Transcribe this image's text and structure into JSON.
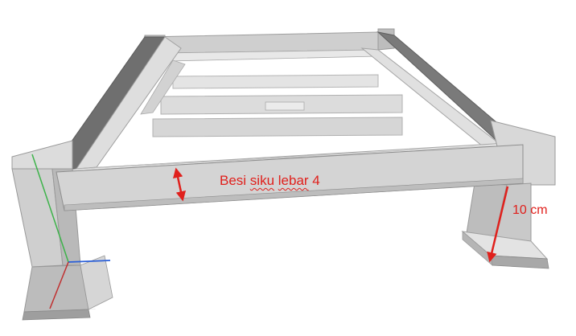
{
  "annotations": {
    "angle_iron": {
      "prefix": "Besi ",
      "squiggle_word": "siku",
      "middle": " ",
      "squiggle_word2": "lebar",
      "suffix": " 4"
    },
    "leg_height": "10 cm"
  },
  "colors": {
    "annotation": "#e0201c",
    "axis_x": "#2a5fd8",
    "axis_y": "#3db34a",
    "axis_z": "#c03030",
    "steel_light": "#d9d9d9",
    "steel_mid": "#c4c4c4",
    "steel_dark": "#8a8a8a"
  }
}
